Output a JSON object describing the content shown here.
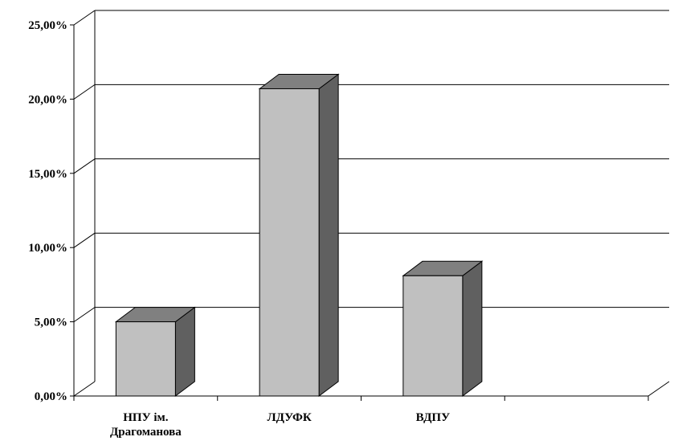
{
  "chart_data": {
    "type": "bar",
    "categories": [
      [
        "НПУ ім.",
        "Драгоманова"
      ],
      [
        "ЛДУФК"
      ],
      [
        "ВДПУ"
      ],
      [
        ""
      ]
    ],
    "values": [
      5.0,
      20.7,
      8.1,
      null
    ],
    "y_ticks": [
      "0,00%",
      "5,00%",
      "10,00%",
      "15,00%",
      "20,00%",
      "25,00%"
    ],
    "ylim": [
      0,
      25
    ],
    "grid": true,
    "style": "3d-column",
    "colors": {
      "bar_front": "#c0c0c0",
      "bar_top": "#808080",
      "bar_side": "#606060",
      "lines": "#000000"
    }
  }
}
